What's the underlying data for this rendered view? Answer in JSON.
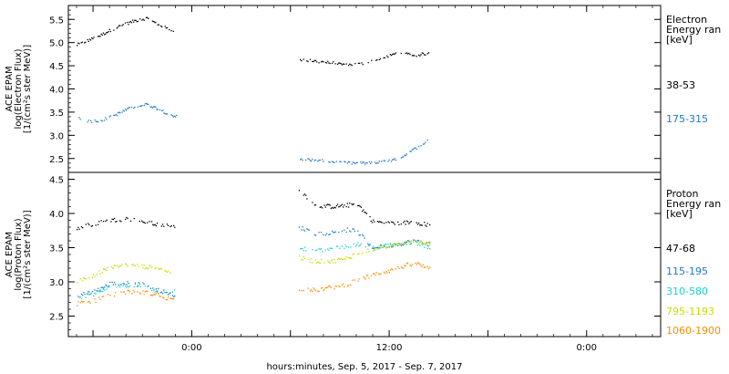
{
  "xaxis": {
    "label": "hours:minutes, Sep.  5, 2017 - Sep.  7, 2017",
    "range_hours": [
      -7.5,
      28.5
    ],
    "ticks": [
      {
        "hours": 0,
        "label": "0:00"
      },
      {
        "hours": 12,
        "label": "12:00"
      },
      {
        "hours": 24,
        "label": "0:00"
      }
    ]
  },
  "chart_data": [
    {
      "type": "scatter",
      "ylabel_lines": [
        "ACE EPAM",
        "log(Electron Flux)",
        "[1/(cm²s ster MeV)]"
      ],
      "ylim": [
        2.2,
        5.8
      ],
      "yticks": [
        "2.5",
        "3.0",
        "3.5",
        "4.0",
        "4.5",
        "5.0",
        "5.5"
      ],
      "legend": {
        "title_lines": [
          "Electron",
          "Energy ran",
          "[keV]"
        ],
        "entries": [
          {
            "label": "38-53",
            "color": "#000000"
          },
          {
            "label": "175-315",
            "color": "#1e78c8"
          }
        ]
      },
      "series": [
        {
          "label_ref": 0,
          "segments": [
            {
              "x": [
                -7.0,
                -6.3,
                -5.6,
                -4.9,
                -4.2,
                -3.5,
                -2.8,
                -2.1,
                -1.4,
                -0.9
              ],
              "y": [
                4.95,
                5.05,
                5.15,
                5.28,
                5.38,
                5.47,
                5.52,
                5.4,
                5.28,
                5.22
              ]
            },
            {
              "x": [
                6.5,
                7.5,
                8.5,
                9.5,
                10.5,
                11.5,
                12.5,
                13.5,
                14.5
              ],
              "y": [
                4.62,
                4.6,
                4.56,
                4.52,
                4.55,
                4.65,
                4.78,
                4.72,
                4.78
              ]
            }
          ]
        },
        {
          "label_ref": 1,
          "segments": [
            {
              "x": [
                -7.0,
                -6.3,
                -5.6,
                -4.9,
                -4.2,
                -3.5,
                -2.8,
                -2.1,
                -1.4,
                -0.9
              ],
              "y": [
                3.4,
                3.3,
                3.32,
                3.4,
                3.52,
                3.62,
                3.67,
                3.58,
                3.45,
                3.4
              ]
            },
            {
              "x": [
                6.5,
                7.5,
                8.5,
                9.5,
                10.5,
                11.5,
                12.5,
                13.5,
                14.5
              ],
              "y": [
                2.5,
                2.46,
                2.43,
                2.4,
                2.4,
                2.42,
                2.48,
                2.7,
                2.93
              ]
            }
          ]
        }
      ]
    },
    {
      "type": "scatter",
      "ylabel_lines": [
        "ACE EPAM",
        "log(Proton Flux)",
        "[1/(cm²s ster MeV)]"
      ],
      "ylim": [
        2.2,
        4.6
      ],
      "yticks": [
        "2.5",
        "3.0",
        "3.5",
        "4.0",
        "4.5"
      ],
      "legend": {
        "title_lines": [
          "Proton",
          "Energy ran",
          "[keV]"
        ],
        "entries": [
          {
            "label": "47-68",
            "color": "#000000"
          },
          {
            "label": "115-195",
            "color": "#1e78c8"
          },
          {
            "label": "310-580",
            "color": "#19d2d2"
          },
          {
            "label": "795-1193",
            "color": "#c8dc00"
          },
          {
            "label": "1060-1900",
            "color": "#ff8c00"
          }
        ]
      },
      "series": [
        {
          "label_ref": 0,
          "segments": [
            {
              "x": [
                -7.0,
                -6.0,
                -5.0,
                -4.0,
                -3.0,
                -2.0,
                -1.0
              ],
              "y": [
                3.78,
                3.85,
                3.9,
                3.92,
                3.88,
                3.83,
                3.8
              ]
            },
            {
              "x": [
                6.5,
                7.5,
                8.5,
                9.5,
                10.0,
                11.0,
                12.5,
                13.5,
                14.5
              ],
              "y": [
                4.35,
                4.12,
                4.1,
                4.12,
                4.15,
                3.88,
                3.85,
                3.88,
                3.82
              ]
            }
          ]
        },
        {
          "label_ref": 1,
          "segments": [
            {
              "x": [
                -7.0,
                -6.0,
                -5.0,
                -4.0,
                -3.0,
                -2.0,
                -1.0
              ],
              "y": [
                2.8,
                2.85,
                2.97,
                2.98,
                2.96,
                2.88,
                2.78
              ]
            },
            {
              "x": [
                6.5,
                7.5,
                8.5,
                9.5,
                10.0,
                11.0,
                12.5,
                13.5,
                14.5
              ],
              "y": [
                3.8,
                3.7,
                3.72,
                3.76,
                3.74,
                3.5,
                3.55,
                3.6,
                3.55
              ]
            }
          ]
        },
        {
          "label_ref": 2,
          "segments": [
            {
              "x": [
                -7.0,
                -6.0,
                -5.0,
                -4.0,
                -3.0,
                -2.0,
                -1.0
              ],
              "y": [
                2.75,
                2.82,
                2.92,
                2.95,
                2.93,
                2.85,
                2.86
              ]
            },
            {
              "x": [
                6.5,
                7.5,
                8.5,
                9.5,
                10.0,
                11.0,
                12.5,
                13.5,
                14.5
              ],
              "y": [
                3.5,
                3.45,
                3.48,
                3.52,
                3.55,
                3.5,
                3.55,
                3.58,
                3.5
              ]
            }
          ]
        },
        {
          "label_ref": 3,
          "segments": [
            {
              "x": [
                -7.0,
                -6.0,
                -5.0,
                -4.0,
                -3.0,
                -2.0,
                -1.0
              ],
              "y": [
                3.0,
                3.1,
                3.2,
                3.25,
                3.22,
                3.2,
                3.1
              ]
            },
            {
              "x": [
                6.5,
                7.5,
                8.5,
                9.5,
                10.0,
                11.0,
                12.5,
                13.5,
                14.5
              ],
              "y": [
                3.35,
                3.3,
                3.3,
                3.35,
                3.42,
                3.48,
                3.55,
                3.6,
                3.55
              ]
            }
          ]
        },
        {
          "label_ref": 4,
          "segments": [
            {
              "x": [
                -7.0,
                -6.0,
                -5.0,
                -4.0,
                -3.0,
                -2.0,
                -1.0
              ],
              "y": [
                2.68,
                2.72,
                2.8,
                2.85,
                2.85,
                2.8,
                2.72
              ]
            },
            {
              "x": [
                6.5,
                7.5,
                8.5,
                9.5,
                10.0,
                11.0,
                12.5,
                13.5,
                14.5
              ],
              "y": [
                2.9,
                2.88,
                2.92,
                2.97,
                3.02,
                3.1,
                3.2,
                3.28,
                3.18
              ]
            }
          ]
        }
      ]
    }
  ]
}
